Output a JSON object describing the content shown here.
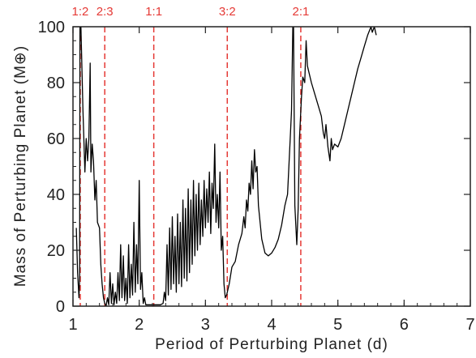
{
  "chart_data": {
    "type": "line",
    "title": "",
    "xlabel": "Period of Perturbing Planet (d)",
    "ylabel": "Mass of Perturbing Planet (M⊕)",
    "xlim": [
      1,
      7
    ],
    "ylim": [
      0,
      100
    ],
    "x_ticks": [
      1,
      2,
      3,
      4,
      5,
      6,
      7
    ],
    "y_ticks": [
      0,
      20,
      40,
      60,
      80,
      100
    ],
    "grid": false,
    "line_color": "#000000",
    "resonance_color": "#e53935",
    "resonances": [
      {
        "label": "1:2",
        "x": 1.11
      },
      {
        "label": "2:3",
        "x": 1.48
      },
      {
        "label": "1:1",
        "x": 2.22
      },
      {
        "label": "3:2",
        "x": 3.33
      },
      {
        "label": "2:1",
        "x": 4.44
      }
    ],
    "series": [
      {
        "points": [
          [
            1.05,
            28
          ],
          [
            1.07,
            12
          ],
          [
            1.09,
            3
          ],
          [
            1.1,
            10
          ],
          [
            1.105,
            100
          ],
          [
            1.12,
            100
          ],
          [
            1.15,
            70
          ],
          [
            1.18,
            48
          ],
          [
            1.2,
            60
          ],
          [
            1.22,
            52
          ],
          [
            1.24,
            60
          ],
          [
            1.26,
            87
          ],
          [
            1.27,
            48
          ],
          [
            1.29,
            58
          ],
          [
            1.31,
            52
          ],
          [
            1.33,
            38
          ],
          [
            1.35,
            45
          ],
          [
            1.37,
            30
          ],
          [
            1.4,
            28
          ],
          [
            1.42,
            15
          ],
          [
            1.44,
            8
          ],
          [
            1.46,
            3
          ],
          [
            1.48,
            1
          ],
          [
            1.5,
            0
          ],
          [
            1.52,
            3
          ],
          [
            1.54,
            0.5
          ],
          [
            1.56,
            12
          ],
          [
            1.58,
            1
          ],
          [
            1.6,
            8
          ],
          [
            1.62,
            0.5
          ],
          [
            1.64,
            5
          ],
          [
            1.66,
            1
          ],
          [
            1.68,
            12
          ],
          [
            1.7,
            2
          ],
          [
            1.72,
            22
          ],
          [
            1.74,
            3
          ],
          [
            1.76,
            18
          ],
          [
            1.78,
            2
          ],
          [
            1.8,
            10
          ],
          [
            1.82,
            1
          ],
          [
            1.84,
            22
          ],
          [
            1.86,
            3
          ],
          [
            1.88,
            15
          ],
          [
            1.9,
            4
          ],
          [
            1.92,
            30
          ],
          [
            1.94,
            5
          ],
          [
            1.96,
            22
          ],
          [
            1.98,
            8
          ],
          [
            2.0,
            45
          ],
          [
            2.02,
            6
          ],
          [
            2.04,
            12
          ],
          [
            2.06,
            1
          ],
          [
            2.08,
            3
          ],
          [
            2.1,
            0.5
          ],
          [
            2.14,
            0.5
          ],
          [
            2.2,
            0.5
          ],
          [
            2.26,
            0.5
          ],
          [
            2.32,
            0.5
          ],
          [
            2.36,
            1
          ],
          [
            2.38,
            5
          ],
          [
            2.4,
            2
          ],
          [
            2.42,
            22
          ],
          [
            2.44,
            4
          ],
          [
            2.46,
            28
          ],
          [
            2.48,
            6
          ],
          [
            2.5,
            32
          ],
          [
            2.52,
            8
          ],
          [
            2.54,
            25
          ],
          [
            2.56,
            5
          ],
          [
            2.58,
            33
          ],
          [
            2.6,
            8
          ],
          [
            2.62,
            30
          ],
          [
            2.64,
            7
          ],
          [
            2.66,
            38
          ],
          [
            2.68,
            10
          ],
          [
            2.7,
            35
          ],
          [
            2.72,
            9
          ],
          [
            2.74,
            42
          ],
          [
            2.76,
            12
          ],
          [
            2.78,
            38
          ],
          [
            2.8,
            15
          ],
          [
            2.82,
            45
          ],
          [
            2.84,
            18
          ],
          [
            2.86,
            40
          ],
          [
            2.88,
            20
          ],
          [
            2.9,
            44
          ],
          [
            2.92,
            22
          ],
          [
            2.94,
            38
          ],
          [
            2.96,
            25
          ],
          [
            2.98,
            45
          ],
          [
            3.0,
            28
          ],
          [
            3.02,
            42
          ],
          [
            3.04,
            30
          ],
          [
            3.06,
            48
          ],
          [
            3.08,
            26
          ],
          [
            3.1,
            44
          ],
          [
            3.12,
            35
          ],
          [
            3.14,
            58
          ],
          [
            3.16,
            30
          ],
          [
            3.18,
            40
          ],
          [
            3.2,
            28
          ],
          [
            3.22,
            48
          ],
          [
            3.24,
            20
          ],
          [
            3.26,
            25
          ],
          [
            3.28,
            8
          ],
          [
            3.3,
            3
          ],
          [
            3.32,
            4
          ],
          [
            3.36,
            8
          ],
          [
            3.4,
            14
          ],
          [
            3.45,
            16
          ],
          [
            3.5,
            22
          ],
          [
            3.55,
            26
          ],
          [
            3.58,
            32
          ],
          [
            3.6,
            28
          ],
          [
            3.62,
            38
          ],
          [
            3.64,
            34
          ],
          [
            3.66,
            44
          ],
          [
            3.68,
            40
          ],
          [
            3.7,
            52
          ],
          [
            3.72,
            42
          ],
          [
            3.74,
            56
          ],
          [
            3.76,
            48
          ],
          [
            3.78,
            50
          ],
          [
            3.8,
            36
          ],
          [
            3.85,
            24
          ],
          [
            3.9,
            19
          ],
          [
            3.95,
            18
          ],
          [
            4.0,
            19
          ],
          [
            4.05,
            21
          ],
          [
            4.1,
            24
          ],
          [
            4.15,
            29
          ],
          [
            4.2,
            36
          ],
          [
            4.24,
            40
          ],
          [
            4.28,
            60
          ],
          [
            4.3,
            70
          ],
          [
            4.32,
            100
          ],
          [
            4.33,
            100
          ],
          [
            4.35,
            36
          ],
          [
            4.38,
            22
          ],
          [
            4.4,
            35
          ],
          [
            4.42,
            60
          ],
          [
            4.45,
            75
          ],
          [
            4.47,
            82
          ],
          [
            4.5,
            80
          ],
          [
            4.52,
            95
          ],
          [
            4.54,
            86
          ],
          [
            4.56,
            84
          ],
          [
            4.6,
            80
          ],
          [
            4.65,
            76
          ],
          [
            4.7,
            72
          ],
          [
            4.75,
            68
          ],
          [
            4.78,
            62
          ],
          [
            4.8,
            60
          ],
          [
            4.82,
            65
          ],
          [
            4.85,
            57
          ],
          [
            4.88,
            52
          ],
          [
            4.9,
            60
          ],
          [
            4.92,
            56
          ],
          [
            4.95,
            58
          ],
          [
            5.0,
            57
          ],
          [
            5.05,
            60
          ],
          [
            5.1,
            65
          ],
          [
            5.15,
            70
          ],
          [
            5.2,
            75
          ],
          [
            5.25,
            80
          ],
          [
            5.3,
            85
          ],
          [
            5.35,
            89
          ],
          [
            5.4,
            93
          ],
          [
            5.45,
            97
          ],
          [
            5.5,
            100
          ],
          [
            5.52,
            98
          ],
          [
            5.55,
            100
          ],
          [
            5.58,
            97
          ]
        ]
      }
    ]
  }
}
